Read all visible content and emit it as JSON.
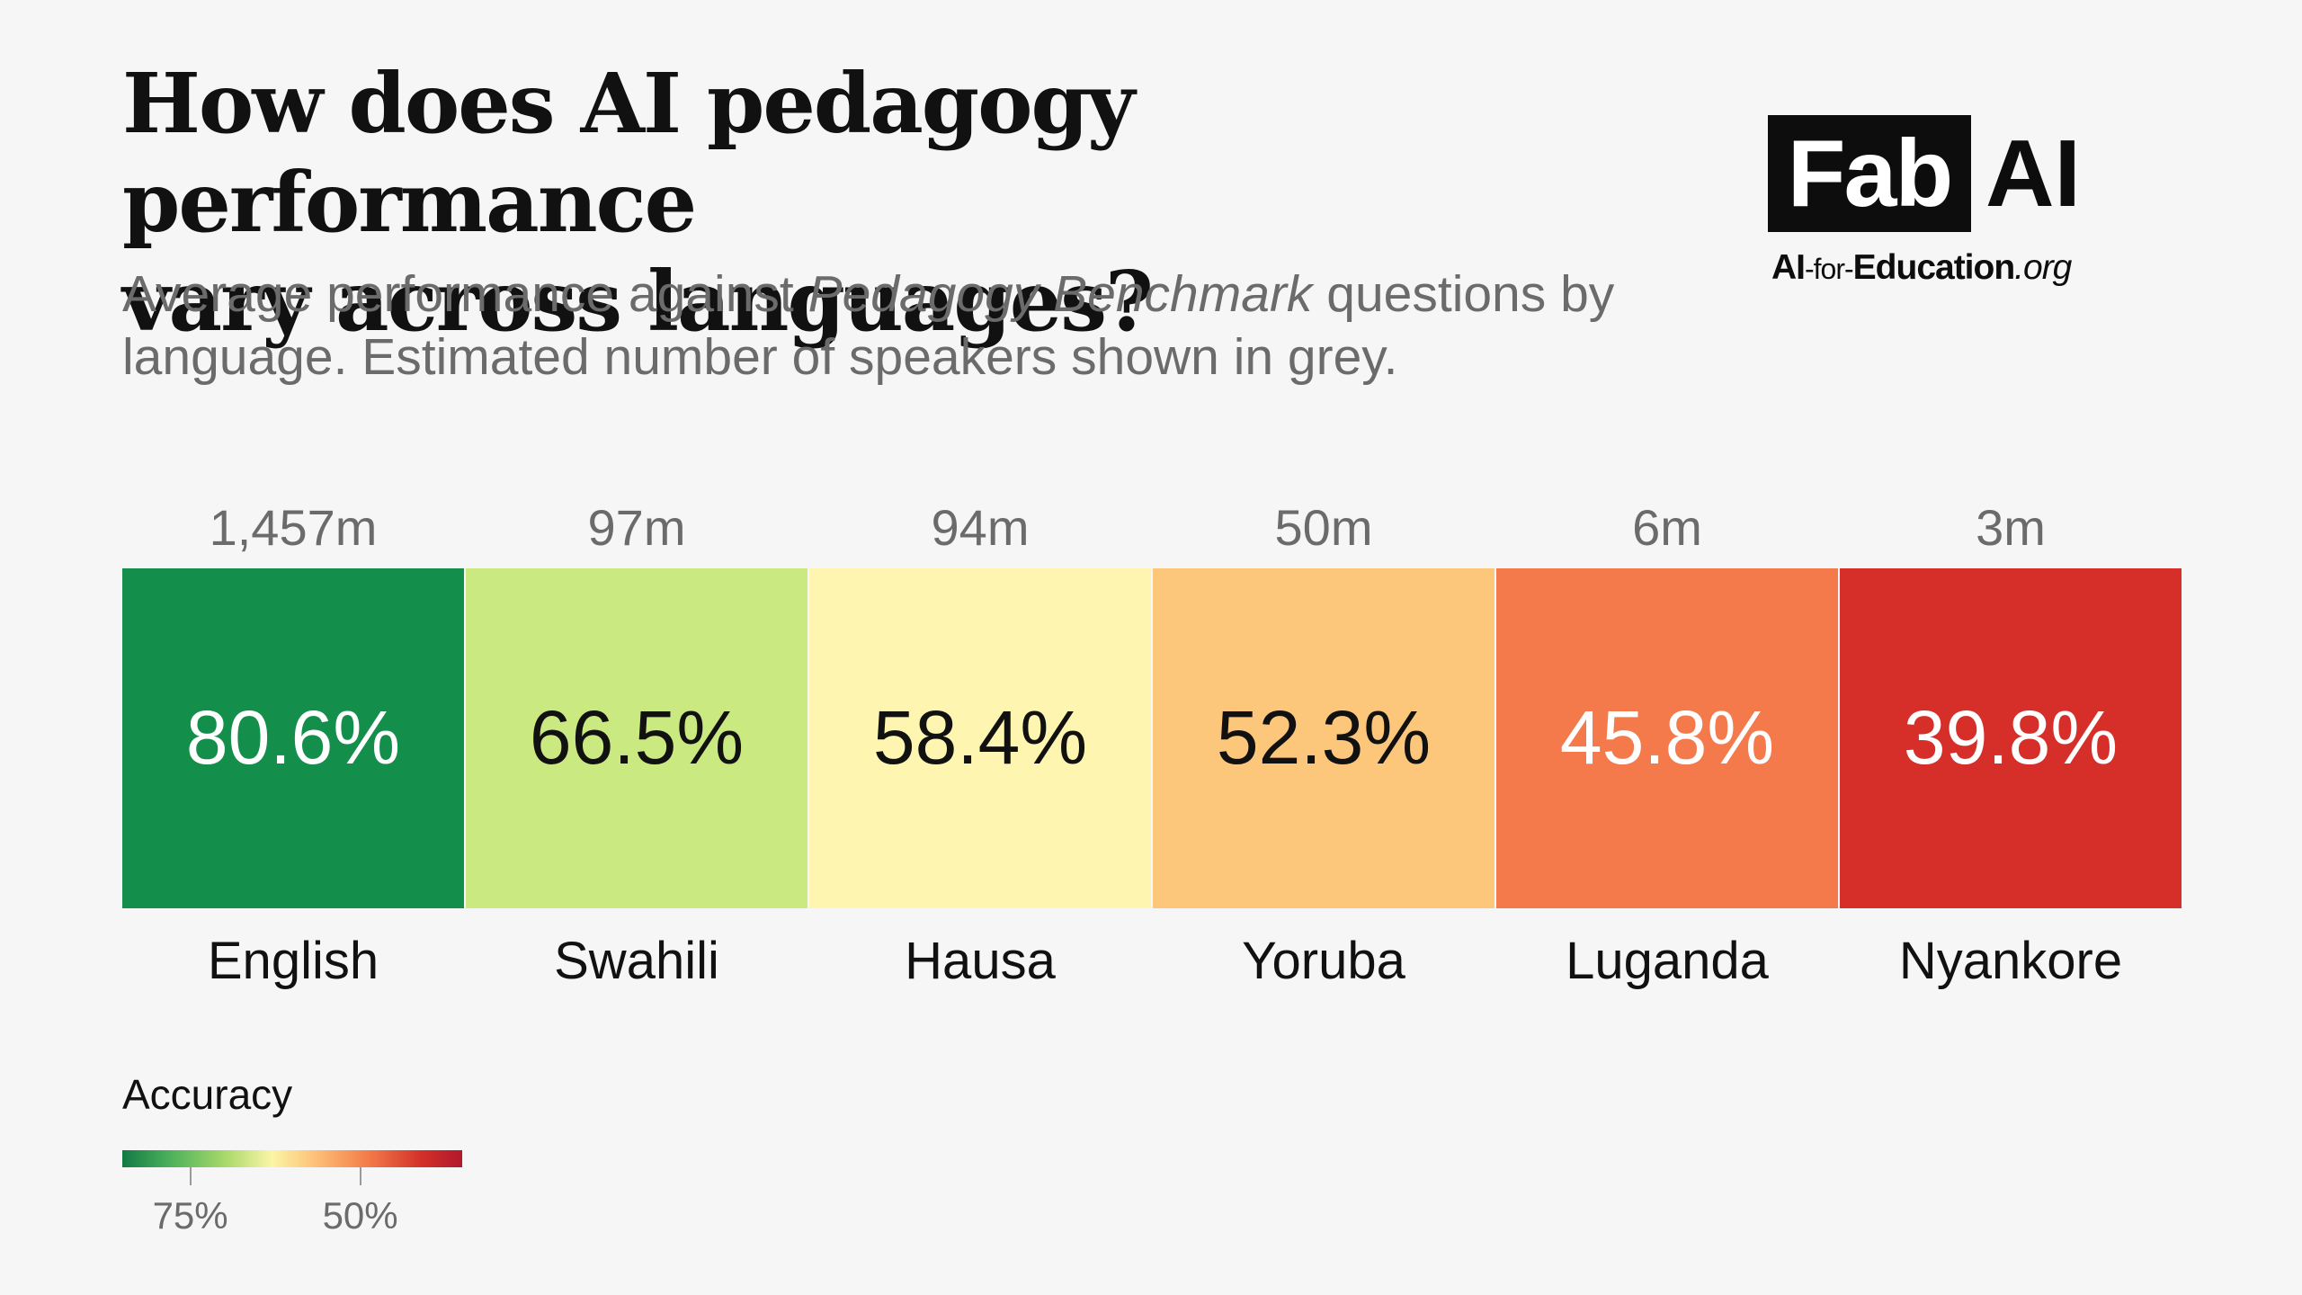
{
  "title_lines": [
    "How does AI pedagogy performance",
    "vary across languages?"
  ],
  "subtitle": {
    "before": "Average performance against ",
    "italic": "Pedagogy Benchmark",
    "after": " questions by language. Estimated number of speakers shown in grey."
  },
  "logo": {
    "box_text": "Fab",
    "ai_text": "AI",
    "url_ai": "AI",
    "url_for": "-for-",
    "url_education": "Education",
    "url_tld": ".org"
  },
  "chart_data": {
    "type": "heatmap",
    "categories": [
      "English",
      "Swahili",
      "Hausa",
      "Yoruba",
      "Luganda",
      "Nyankore"
    ],
    "values": [
      80.6,
      66.5,
      58.4,
      52.3,
      45.8,
      39.8
    ],
    "value_labels": [
      "80.6%",
      "66.5%",
      "58.4%",
      "52.3%",
      "45.8%",
      "39.8%"
    ],
    "speakers": [
      "1,457m",
      "97m",
      "94m",
      "50m",
      "6m",
      "3m"
    ],
    "cell_colors": [
      "#148f4b",
      "#cbe981",
      "#fef5b0",
      "#fdc77b",
      "#f47a4c",
      "#d62f2a"
    ],
    "text_colors": [
      "#ffffff",
      "#111111",
      "#111111",
      "#111111",
      "#ffffff",
      "#ffffff"
    ],
    "unit": "%"
  },
  "legend": {
    "title": "Accuracy",
    "ticks": [
      {
        "label": "75%",
        "value": 75
      },
      {
        "label": "50%",
        "value": 50
      }
    ],
    "scale_range": [
      85,
      35
    ]
  }
}
